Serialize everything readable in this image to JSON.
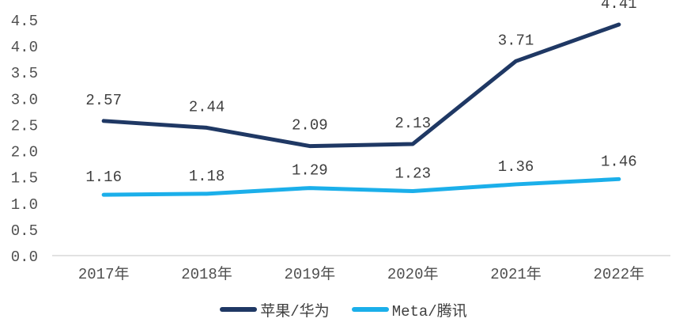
{
  "chart_data": {
    "type": "line",
    "title": "",
    "xlabel": "",
    "ylabel": "",
    "categories": [
      "2017年",
      "2018年",
      "2019年",
      "2020年",
      "2021年",
      "2022年"
    ],
    "series": [
      {
        "name": "苹果/华为",
        "color": "#1F3864",
        "values": [
          2.57,
          2.44,
          2.09,
          2.13,
          3.71,
          4.41
        ],
        "labels": [
          "2.57",
          "2.44",
          "2.09",
          "2.13",
          "3.71",
          "4.41"
        ]
      },
      {
        "name": "Meta/腾讯",
        "color": "#1BAFEA",
        "values": [
          1.16,
          1.18,
          1.29,
          1.23,
          1.36,
          1.46
        ],
        "labels": [
          "1.16",
          "1.18",
          "1.29",
          "1.23",
          "1.36",
          "1.46"
        ]
      }
    ],
    "ylim": [
      0,
      4.5
    ],
    "y_tick_step": 0.5,
    "y_tick_labels": [
      "0.0",
      "0.5",
      "1.0",
      "1.5",
      "2.0",
      "2.5",
      "3.0",
      "3.5",
      "4.0",
      "4.5"
    ],
    "grid": false,
    "legend_position": "bottom"
  },
  "style": {
    "axis_line_color": "#D9D9D9",
    "tick_text_color": "#4f4f4f",
    "label_text_color": "#3f3f3f",
    "background_color": "#FFFFFF"
  }
}
